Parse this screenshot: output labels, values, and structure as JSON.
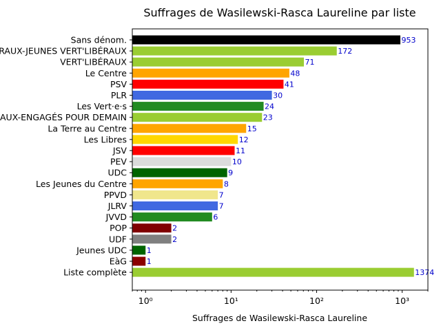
{
  "chart_data": {
    "type": "bar",
    "orientation": "horizontal",
    "title": "Suffrages de Wasilewski-Rasca Laureline par liste",
    "xlabel": "Suffrages de Wasilewski-Rasca Laureline",
    "ylabel": "",
    "x_scale": "log",
    "xlim": [
      0.7,
      2000
    ],
    "x_ticks": [
      1,
      10,
      100,
      1000
    ],
    "x_tick_labels": [
      "10⁰",
      "10¹",
      "10²",
      "10³"
    ],
    "grid": false,
    "categories": [
      "Sans dénom.",
      "VERT'LIBÉRAUX-JEUNES VERT'LIBÉRAUX",
      "VERT'LIBÉRAUX",
      "Le Centre",
      "PSV",
      "PLR",
      "Les Vert·e·s",
      "LES VERT'LIBÉRAUX-ENGAGÉS POUR DEMAIN",
      "La Terre au Centre",
      "Les Libres",
      "JSV",
      "PEV",
      "UDC",
      "Les Jeunes du Centre",
      "PPVD",
      "JLRV",
      "JVVD",
      "POP",
      "UDF",
      "Jeunes UDC",
      "EàG",
      "Liste complète"
    ],
    "values": [
      953,
      172,
      71,
      48,
      41,
      30,
      24,
      23,
      15,
      12,
      11,
      10,
      9,
      8,
      7,
      7,
      6,
      2,
      2,
      1,
      1,
      1374
    ],
    "colors": [
      "#000000",
      "#9acd32",
      "#9acd32",
      "#ffa500",
      "#ff0000",
      "#4169e1",
      "#228b22",
      "#9acd32",
      "#ffa500",
      "#ffd700",
      "#ff0000",
      "#dcdcdc",
      "#006400",
      "#ffa500",
      "#f0e68c",
      "#4169e1",
      "#228b22",
      "#800000",
      "#808080",
      "#006400",
      "#8b0000",
      "#9acd32"
    ]
  }
}
